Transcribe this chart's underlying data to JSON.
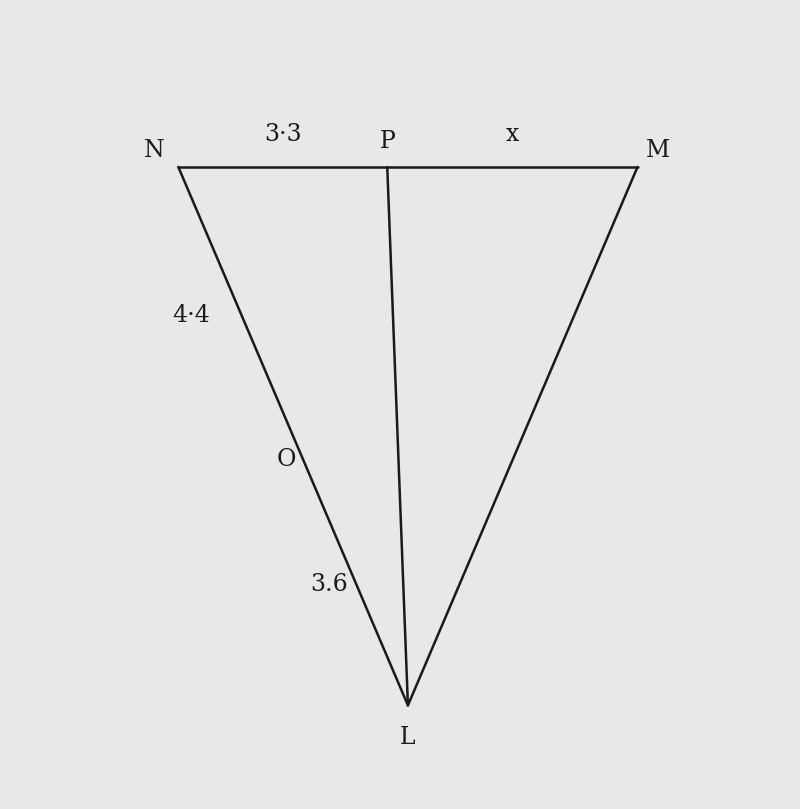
{
  "background_color": "#e8e8e8",
  "line_color": "#1a1a1a",
  "line_width": 1.8,
  "label_color": "#1a1a1a",
  "label_fontsize": 17,
  "vertices": {
    "N": [
      0.22,
      0.8
    ],
    "M": [
      0.8,
      0.8
    ],
    "L": [
      0.51,
      0.12
    ]
  },
  "segment_labels": {
    "NP": "3·3",
    "PM": "x",
    "NO": "4·4",
    "OL": "3.6"
  },
  "point_labels": {
    "N": "N",
    "M": "M",
    "L": "L",
    "P": "P",
    "O": "O"
  },
  "ratio_NP_NM": 0.455,
  "ratio_NO_NL": 0.55
}
